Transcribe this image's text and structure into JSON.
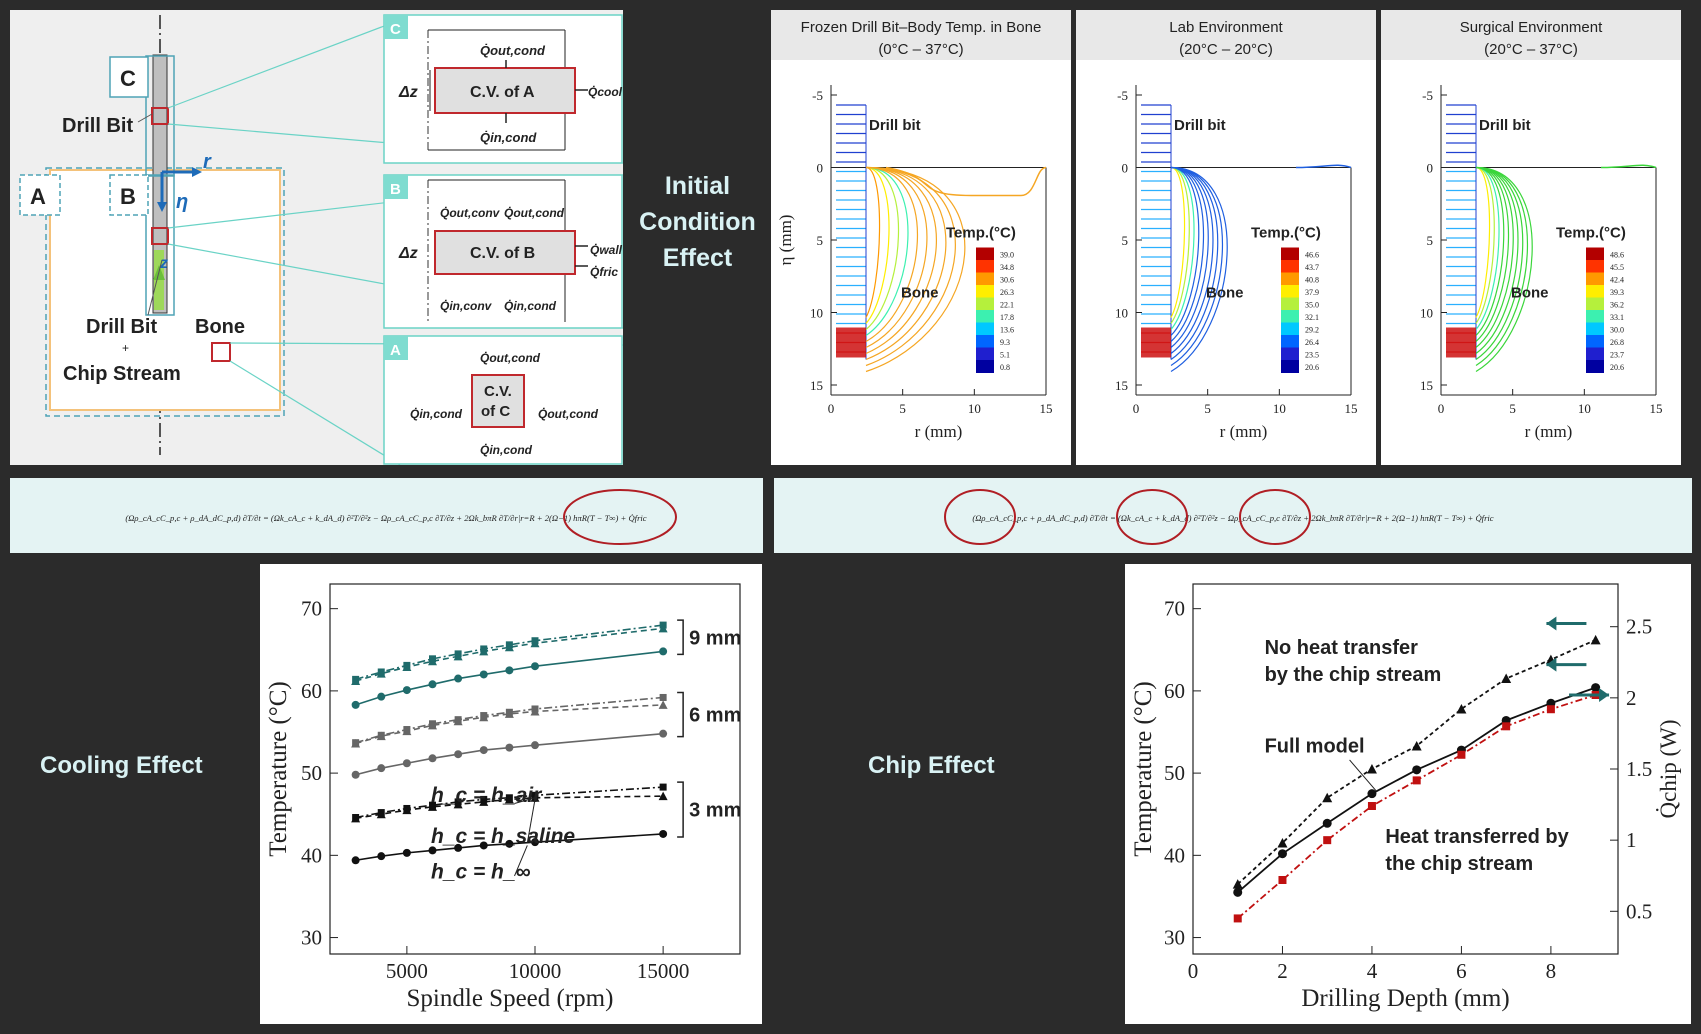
{
  "schematic": {
    "label_c": "C",
    "label_a": "A",
    "label_b": "B",
    "drill_bit": "Drill Bit",
    "drill_bit_chip": "Drill Bit",
    "plus": "+",
    "chip_stream": "Chip Stream",
    "bone": "Bone",
    "axis_r": "r",
    "axis_eta": "η",
    "axis_z": "z"
  },
  "cv_c": {
    "tag": "C",
    "box": "C.V. of A",
    "dz": "Δz",
    "q_top": "Q̇out,cond",
    "q_bottom": "Q̇in,cond",
    "q_right": "Q̇cool"
  },
  "cv_b": {
    "tag": "B",
    "box": "C.V. of B",
    "dz": "Δz",
    "q_top1": "Q̇out,conv",
    "q_top2": "Q̇out,cond",
    "q_bot1": "Q̇in,conv",
    "q_bot2": "Q̇in,cond",
    "q_wall": "Q̇wall",
    "q_fric": "Q̇fric"
  },
  "cv_a": {
    "tag": "A",
    "box1": "C.V.",
    "box2": "of C",
    "q_top": "Q̇out,cond",
    "q_bottom": "Q̇in,cond",
    "q_left": "Q̇in,cond",
    "q_right": "Q̇out,cond"
  },
  "section_labels": {
    "initial1": "Initial",
    "initial2": "Condition",
    "initial3": "Effect",
    "cooling": "Cooling Effect",
    "chip": "Chip Effect"
  },
  "contours": [
    {
      "title1": "Frozen Drill Bit–Body Temp. in Bone",
      "title2": "(0°C – 37°C)",
      "legend_title": "Temp.(°C)",
      "legend": [
        "39.0",
        "34.8",
        "30.6",
        "26.3",
        "22.1",
        "17.8",
        "13.6",
        "9.3",
        "5.1",
        "0.8"
      ],
      "drill": "Drill bit",
      "bone": "Bone",
      "xlabel": "r (mm)",
      "ylabel": "η (mm)",
      "xticks": [
        "0",
        "5",
        "10",
        "15"
      ],
      "yticks": [
        "-5",
        "0",
        "5",
        "10",
        "15"
      ],
      "contour_color": "#f5a623"
    },
    {
      "title1": "Lab Environment",
      "title2": "(20°C – 20°C)",
      "legend_title": "Temp.(°C)",
      "legend": [
        "46.6",
        "43.7",
        "40.8",
        "37.9",
        "35.0",
        "32.1",
        "29.2",
        "26.4",
        "23.5",
        "20.6"
      ],
      "drill": "Drill bit",
      "bone": "Bone",
      "xlabel": "r (mm)",
      "ylabel": "",
      "xticks": [
        "0",
        "5",
        "10",
        "15"
      ],
      "yticks": [
        "-5",
        "0",
        "5",
        "10",
        "15"
      ],
      "contour_color": "#1f5fe0"
    },
    {
      "title1": "Surgical Environment",
      "title2": "(20°C – 37°C)",
      "legend_title": "Temp.(°C)",
      "legend": [
        "48.6",
        "45.5",
        "42.4",
        "39.3",
        "36.2",
        "33.1",
        "30.0",
        "26.8",
        "23.7",
        "20.6"
      ],
      "drill": "Drill bit",
      "bone": "Bone",
      "xlabel": "r (mm)",
      "ylabel": "",
      "xticks": [
        "0",
        "5",
        "10",
        "15"
      ],
      "yticks": [
        "-5",
        "0",
        "5",
        "10",
        "15"
      ],
      "contour_color": "#3ad63a"
    }
  ],
  "equations": {
    "left": "(Ωρ_cA_cC_p,c + ρ_dA_dC_p,d) ∂T/∂t = (Ωk_cA_c + k_dA_d) ∂²T/∂²z − Ωρ_cA_cC_p,c ∂T/∂z + 2Ωk_bπR ∂T/∂r|r=R + 2(Ω−1) hπR(T − T∞) + Q̇fric",
    "right": "(Ωρ_cA_cC_p,c + ρ_dA_dC_p,d) ∂T/∂t = (Ωk_cA_c + k_dA_d) ∂²T/∂²z − Ωρ_cA_cC_p,c ∂T/∂z + 2Ωk_bπR ∂T/∂r|r=R + 2(Ω−1) hπR(T − T∞) + Q̇fric"
  },
  "chart_data": [
    {
      "type": "line",
      "title": "",
      "xlabel": "Spindle Speed (rpm)",
      "ylabel": "Temperature (°C)",
      "xlim": [
        2000,
        18000
      ],
      "ylim": [
        28,
        73
      ],
      "xticks": [
        "5000",
        "10000",
        "15000"
      ],
      "yticks": [
        "30",
        "40",
        "50",
        "60",
        "70"
      ],
      "x": [
        3000,
        4000,
        5000,
        6000,
        7000,
        8000,
        9000,
        10000,
        15000
      ],
      "annotations": [
        "h_c = h_air",
        "h_c = h_saline",
        "h_c = h_∞"
      ],
      "groups": [
        "9 mm",
        "6 mm",
        "3 mm"
      ],
      "series": [
        {
          "name": "9 mm h_air",
          "values": [
            61.4,
            62.3,
            63.1,
            63.9,
            64.5,
            65.1,
            65.6,
            66.1,
            68.0
          ]
        },
        {
          "name": "9 mm h_saline",
          "values": [
            61.2,
            62.1,
            62.9,
            63.6,
            64.2,
            64.8,
            65.3,
            65.8,
            67.6
          ]
        },
        {
          "name": "9 mm h_∞",
          "values": [
            58.3,
            59.3,
            60.1,
            60.8,
            61.5,
            62.0,
            62.5,
            63.0,
            64.8
          ]
        },
        {
          "name": "6 mm h_air",
          "values": [
            53.7,
            54.6,
            55.3,
            56.0,
            56.5,
            57.0,
            57.4,
            57.8,
            59.2
          ]
        },
        {
          "name": "6 mm h_saline",
          "values": [
            53.6,
            54.5,
            55.1,
            55.8,
            56.3,
            56.8,
            57.2,
            57.5,
            58.3
          ]
        },
        {
          "name": "6 mm h_∞",
          "values": [
            49.8,
            50.6,
            51.2,
            51.8,
            52.3,
            52.8,
            53.1,
            53.4,
            54.8
          ]
        },
        {
          "name": "3 mm h_air",
          "values": [
            44.6,
            45.2,
            45.7,
            46.1,
            46.5,
            46.8,
            47.0,
            47.3,
            48.3
          ]
        },
        {
          "name": "3 mm h_saline",
          "values": [
            44.5,
            45.0,
            45.5,
            45.9,
            46.2,
            46.5,
            46.8,
            47.0,
            47.2
          ]
        },
        {
          "name": "3 mm h_∞",
          "values": [
            39.4,
            39.9,
            40.3,
            40.6,
            40.9,
            41.2,
            41.4,
            41.6,
            42.6
          ]
        }
      ]
    },
    {
      "type": "line",
      "title": "",
      "xlabel": "Drilling Depth (mm)",
      "ylabel": "Temperature (°C)",
      "ylabel_right": "Q̇chip (W)",
      "xlim": [
        0,
        9.5
      ],
      "ylim": [
        28,
        73
      ],
      "ylim_right": [
        0.2,
        2.8
      ],
      "xticks": [
        "0",
        "2",
        "4",
        "6",
        "8"
      ],
      "yticks": [
        "30",
        "40",
        "50",
        "60",
        "70"
      ],
      "yticks_right": [
        "0.5",
        "1",
        "1.5",
        "2",
        "2.5"
      ],
      "x": [
        1,
        2,
        3,
        4,
        5,
        6,
        7,
        8,
        9
      ],
      "annotations": [
        "No heat transfer",
        "by the chip stream",
        "Full model",
        "Heat transferred by",
        "the chip stream"
      ],
      "series": [
        {
          "name": "No heat transfer by the chip stream",
          "axis": "left",
          "values": [
            36.5,
            41.5,
            47.0,
            50.5,
            53.3,
            57.8,
            61.5,
            63.8,
            66.2
          ]
        },
        {
          "name": "Full model",
          "axis": "left",
          "values": [
            35.5,
            40.2,
            43.9,
            47.5,
            50.4,
            52.8,
            56.4,
            58.5,
            60.4
          ]
        },
        {
          "name": "Heat transferred by the chip stream",
          "axis": "right",
          "values": [
            0.45,
            0.72,
            1.0,
            1.24,
            1.42,
            1.6,
            1.8,
            1.92,
            2.02
          ]
        }
      ]
    }
  ]
}
